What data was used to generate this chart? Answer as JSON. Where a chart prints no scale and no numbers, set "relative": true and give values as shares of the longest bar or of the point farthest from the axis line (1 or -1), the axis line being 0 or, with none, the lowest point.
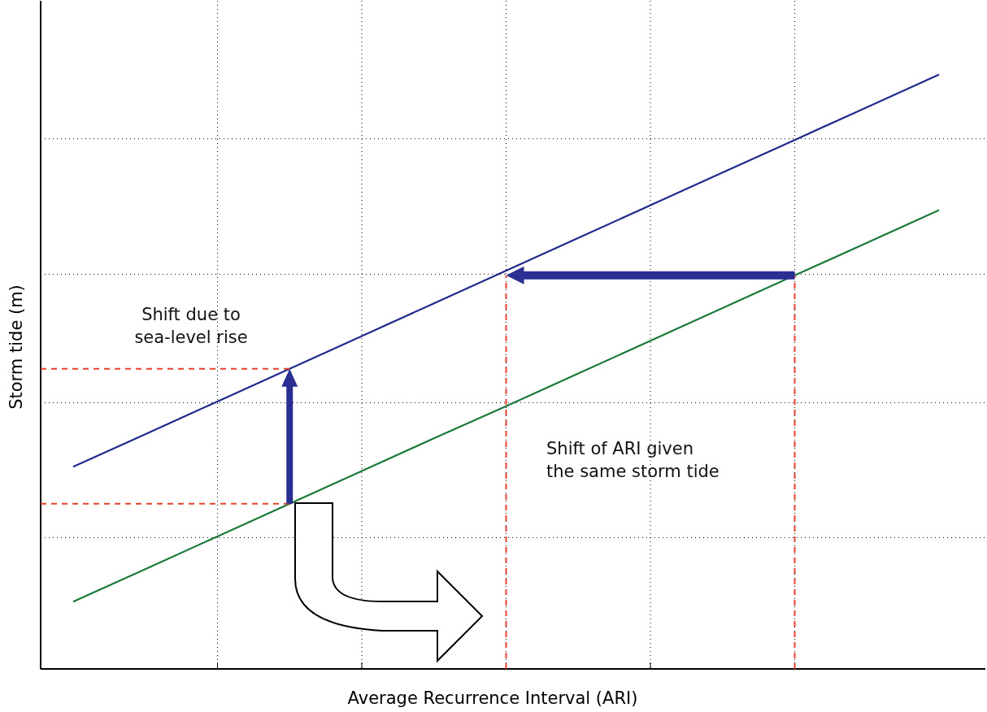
{
  "chart_data": {
    "type": "line",
    "relative": true,
    "xlabel": "Average Recurrence Interval (ARI)",
    "ylabel": "Storm tide (m)",
    "categories": [
      null,
      null,
      null,
      null,
      null,
      null,
      null,
      null,
      null,
      null,
      null,
      null,
      null
    ],
    "grid": true,
    "marker": "none",
    "series": [
      {
        "color": "#1f2a8c",
        "values": [
          0.34,
          0.395,
          0.45,
          0.505,
          0.56,
          0.615,
          0.67,
          0.725,
          0.78,
          0.835,
          0.89,
          0.945,
          1.0
        ]
      },
      {
        "color": "#1a7a3a",
        "values": [
          0.113,
          0.168,
          0.223,
          0.278,
          0.333,
          0.388,
          0.442,
          0.497,
          0.552,
          0.607,
          0.662,
          0.717,
          0.772
        ]
      }
    ],
    "ref_lines": [
      {
        "axis": "y",
        "value": 0.505,
        "color": "#e8412c",
        "line_style": "dashed"
      },
      {
        "axis": "y",
        "value": 0.278,
        "color": "#e8412c",
        "line_style": "dashed"
      }
    ],
    "annotations": [
      "Shift due to\nsea-level rise",
      "Shift of ARI given\nthe same storm tide"
    ]
  }
}
